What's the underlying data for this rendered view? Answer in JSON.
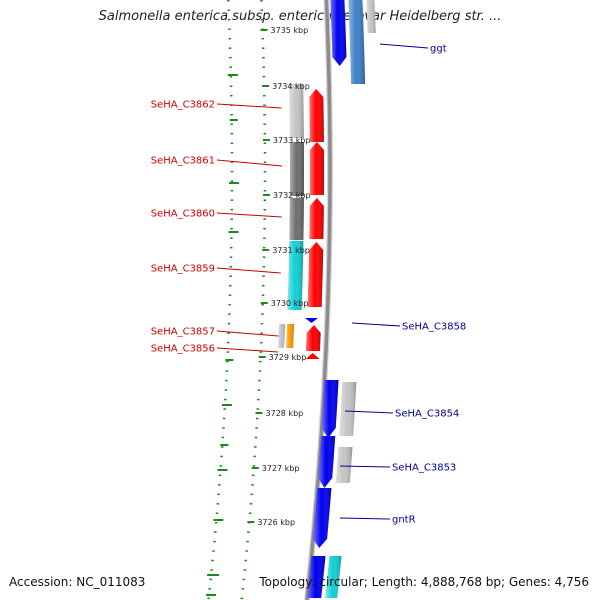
{
  "title": "Salmonella enterica subsp. enterica serovar Heidelberg str. ...",
  "accession": "Accession: NC_011083",
  "summary": "Topology: circular; Length: 4,888,768 bp; Genes: 4,756",
  "colors": {
    "backbone": "#8c8c8c",
    "gc_dots": "#1a8a1a",
    "forward_cds": "#ff0000",
    "reverse_cds": "#0000ee",
    "reverse_cds_alt": "#3d7ec5",
    "cog_cyan": "#10d0d6",
    "cog_orange": "#ff9900",
    "cog_dark_gray": "#6e6e6e",
    "cog_light_gray": "#c4c4c4",
    "left_label": "#cc0000",
    "right_label": "#000099"
  },
  "scale": {
    "unit": "kbp",
    "ticks": [
      "3735 kbp",
      "3734 kbp",
      "3733 kbp",
      "3732 kbp",
      "3731 kbp",
      "3730 kbp",
      "3729 kbp",
      "3728 kbp",
      "3727 kbp",
      "3726 kbp"
    ]
  },
  "left_genes": [
    "SeHA_C3862",
    "SeHA_C3861",
    "SeHA_C3860",
    "SeHA_C3859",
    "SeHA_C3857",
    "SeHA_C3856"
  ],
  "right_genes": [
    "ggt",
    "SeHA_C3858",
    "SeHA_C3854",
    "SeHA_C3853",
    "gntR"
  ]
}
